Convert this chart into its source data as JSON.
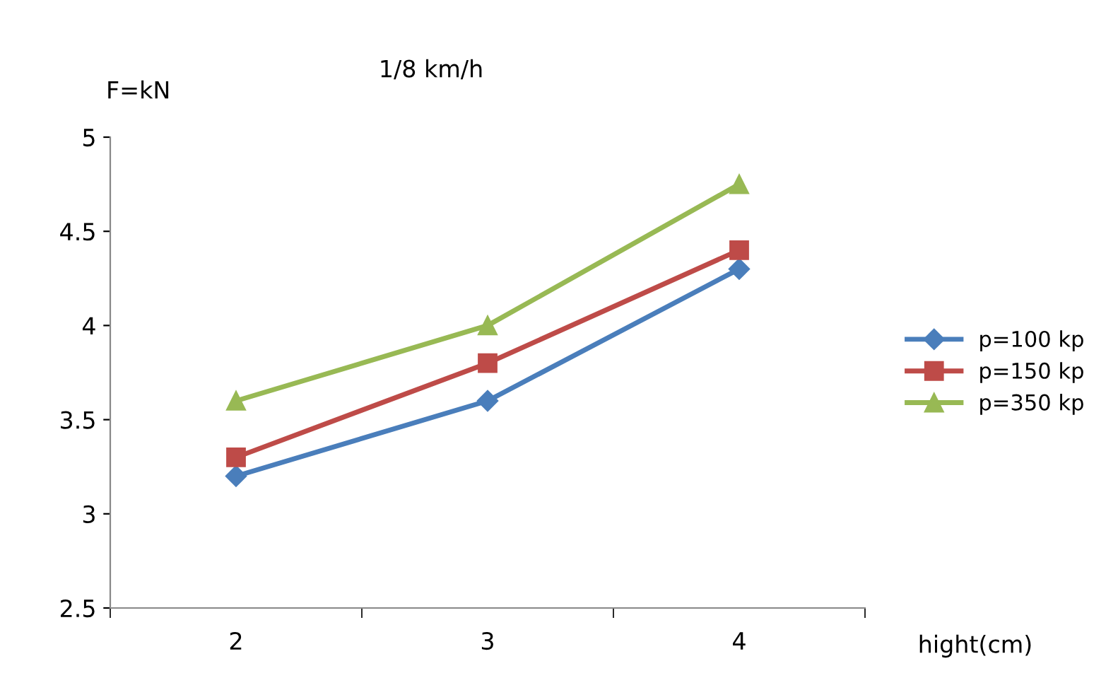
{
  "chart_data": {
    "type": "line",
    "title": "1/8 km/h",
    "ylabel": "F=kN",
    "xlabel": "hight(cm)",
    "categories": [
      "2",
      "3",
      "4"
    ],
    "series": [
      {
        "name": "p=100 kp",
        "color": "#4a7ebb",
        "marker": "diamond",
        "values": [
          3.2,
          3.6,
          4.3
        ]
      },
      {
        "name": "p=150 kp",
        "color": "#be4b48",
        "marker": "square",
        "values": [
          3.3,
          3.8,
          4.4
        ]
      },
      {
        "name": "p=350 kp",
        "color": "#98b954",
        "marker": "triangle",
        "values": [
          3.6,
          4.0,
          4.75
        ]
      }
    ],
    "ylim": [
      2.5,
      5
    ],
    "yticks": [
      2.5,
      3,
      3.5,
      4,
      4.5,
      5
    ],
    "grid": false,
    "legend": "right",
    "line_style": "solid"
  }
}
